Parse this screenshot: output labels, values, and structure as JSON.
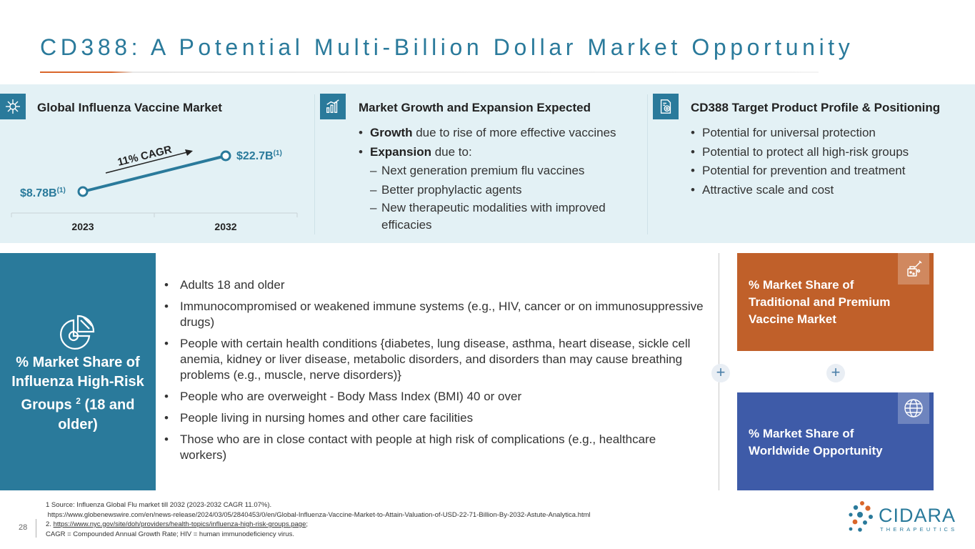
{
  "page": {
    "title": "CD388: A Potential Multi-Billion Dollar Market Opportunity",
    "page_number": "28"
  },
  "market_panel": {
    "heading": "Global Influenza Vaccine Market",
    "icon": "snowflake-virus-icon",
    "cagr_label": "11% CAGR",
    "start_value": "$8.78B",
    "start_sup": "(1)",
    "end_value": "$22.7B",
    "end_sup": "(1)",
    "start_year": "2023",
    "end_year": "2032"
  },
  "chart_data": {
    "type": "line",
    "x": [
      "2023",
      "2032"
    ],
    "series": [
      {
        "values": [
          8.78,
          22.7
        ]
      }
    ],
    "data_labels": [
      "$8.78B(1)",
      "$22.7B(1)"
    ],
    "annotation": "11% CAGR",
    "title": "Global Influenza Vaccine Market",
    "color": "#2a7a9b"
  },
  "growth_panel": {
    "heading": "Market Growth and Expansion Expected",
    "icon": "growth-chart-icon",
    "b1_bold": "Growth",
    "b1_rest": " due to rise of more effective vaccines",
    "b2_bold": "Expansion",
    "b2_rest": " due to:",
    "subs": [
      "Next generation premium flu vaccines",
      "Better prophylactic agents",
      "New therapeutic modalities with improved efficacies"
    ]
  },
  "profile_panel": {
    "heading": "CD388 Target Product Profile & Positioning",
    "icon": "document-target-icon",
    "items": [
      "Potential for universal protection",
      "Potential to protect all high-risk groups",
      "Potential for prevention and treatment",
      "Attractive scale and cost"
    ]
  },
  "high_risk": {
    "label_main": "% Market Share of Influenza High-Risk Groups ",
    "label_sup": "2",
    "label_end": " (18 and older)",
    "icon": "pie-chart-icon",
    "items": [
      "Adults 18 and older",
      "Immunocompromised or weakened immune systems (e.g., HIV, cancer or on immunosuppressive drugs)",
      "People with certain health conditions {diabetes, lung disease, asthma, heart disease, sickle cell anemia, kidney or liver disease, metabolic disorders, and disorders than may cause breathing problems (e.g., muscle, nerve disorders)}",
      "People who are overweight - Body Mass Index (BMI) 40 or over",
      "People living in nursing homes and other care facilities",
      "Those who are in close contact with people at high risk of complications (e.g., healthcare workers)"
    ]
  },
  "boxes": {
    "plus_symbol": "+",
    "orange": {
      "text": "% Market Share of Traditional and Premium Vaccine Market",
      "icon": "vaccine-vial-icon",
      "color": "#c0602a"
    },
    "blue": {
      "text": "% Market Share of Worldwide Opportunity",
      "icon": "globe-icon",
      "color": "#3e5ba8"
    }
  },
  "footnotes": {
    "line1": "1 Source: Influenza Global Flu market till 2032 (2023-2032 CAGR 11.07%).",
    "line2": " https://www.globenewswire.com/en/news-release/2024/03/05/2840453/0/en/Global-Influenza-Vaccine-Market-to-Attain-Valuation-of-USD-22-71-Billion-By-2032-Astute-Analytica.html",
    "line3_prefix": "2. ",
    "line3_url": "https://www.nyc.gov/site/doh/providers/health-topics/influenza-high-risk-groups.page",
    "line3_suffix": ";",
    "line4": "CAGR = Compounded Annual Growth Rate; HIV = human immunodeficiency virus."
  },
  "logo": {
    "name": "CIDARA",
    "tagline": "THERAPEUTICS"
  },
  "colors": {
    "primary": "#2a7a9b",
    "accent": "#d9662a",
    "band": "#e3f1f5"
  }
}
